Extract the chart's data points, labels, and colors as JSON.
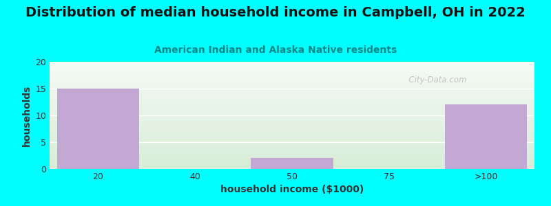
{
  "title": "Distribution of median household income in Campbell, OH in 2022",
  "subtitle": "American Indian and Alaska Native residents",
  "xlabel": "household income ($1000)",
  "ylabel": "households",
  "categories": [
    "20",
    "40",
    "50",
    "75",
    ">100"
  ],
  "values": [
    15,
    0,
    2,
    0,
    12
  ],
  "bar_color": "#C4A8D4",
  "bg_color": "#00FFFF",
  "plot_bg_top": "#F5FAF5",
  "plot_bg_bottom": "#D8EDD8",
  "ylim": [
    0,
    20
  ],
  "yticks": [
    0,
    5,
    10,
    15,
    20
  ],
  "title_fontsize": 14,
  "title_color": "#111111",
  "subtitle_fontsize": 10,
  "subtitle_color": "#008888",
  "axis_label_fontsize": 10,
  "tick_fontsize": 9,
  "watermark": "  City-Data.com",
  "bar_width": 0.85
}
